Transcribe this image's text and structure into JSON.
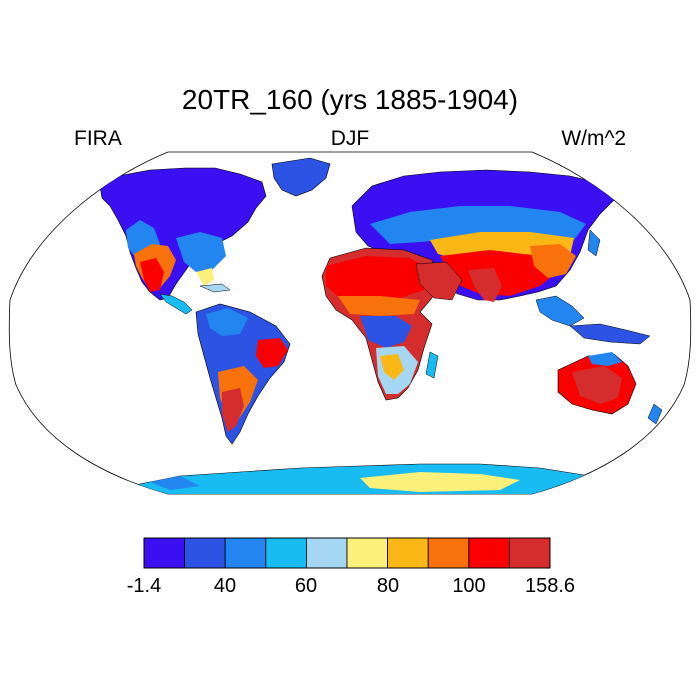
{
  "title": "20TR_160 (yrs 1885-1904)",
  "left_label": "FIRA",
  "center_label": "DJF",
  "right_label": "W/m^2",
  "projection": "Robinson",
  "colorbar": {
    "colors": [
      "#3a10f2",
      "#2c53e3",
      "#2386f0",
      "#18bcf2",
      "#a5d6f2",
      "#fbf07a",
      "#fbb715",
      "#f8710a",
      "#fa0000",
      "#d52d2d"
    ],
    "labels": [
      "-1.4",
      "40",
      "60",
      "80",
      "100",
      "158.6"
    ]
  }
}
